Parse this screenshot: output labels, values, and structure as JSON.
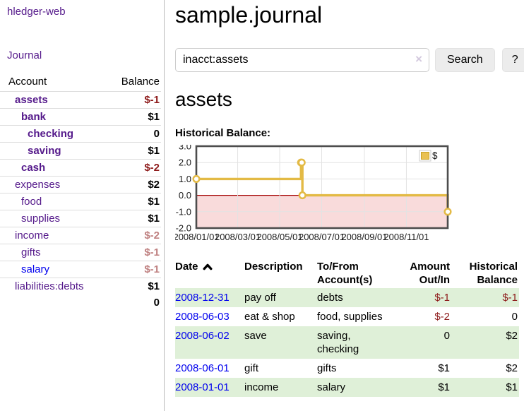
{
  "colors": {
    "link_purple": "#551A8B",
    "link_blue": "#0000EE",
    "neg_strong": "#8d1a1a",
    "neg_soft": "#bf8080",
    "row_green": "#dff0d8",
    "chart_gold": "#e3ba45",
    "chart_negative_bg": "#f9dbdb",
    "chart_zero_line": "#a30000"
  },
  "sidebar": {
    "brand": "hledger-web",
    "journal_link": "Journal",
    "accounts": {
      "col_account": "Account",
      "col_balance": "Balance",
      "rows": [
        {
          "name": "assets",
          "balance": "$-1",
          "indent": 1,
          "in_query": true,
          "negative": true
        },
        {
          "name": "bank",
          "balance": "$1",
          "indent": 2,
          "in_query": true,
          "negative": false
        },
        {
          "name": "checking",
          "balance": "0",
          "indent": 3,
          "in_query": true,
          "negative": false
        },
        {
          "name": "saving",
          "balance": "$1",
          "indent": 3,
          "in_query": true,
          "negative": false
        },
        {
          "name": "cash",
          "balance": "$-2",
          "indent": 2,
          "in_query": true,
          "negative": true
        },
        {
          "name": "expenses",
          "balance": "$2",
          "indent": 1,
          "in_query": false,
          "negative": false
        },
        {
          "name": "food",
          "balance": "$1",
          "indent": 2,
          "in_query": false,
          "negative": false
        },
        {
          "name": "supplies",
          "balance": "$1",
          "indent": 2,
          "in_query": false,
          "negative": false
        },
        {
          "name": "income",
          "balance": "$-2",
          "indent": 1,
          "in_query": false,
          "negative": true
        },
        {
          "name": "gifts",
          "balance": "$-1",
          "indent": 2,
          "in_query": false,
          "negative": true
        },
        {
          "name": "salary",
          "balance": "$-1",
          "indent": 2,
          "in_query": false,
          "negative": true,
          "unvisited": true
        },
        {
          "name": "liabilities:debts",
          "balance": "$1",
          "indent": 1,
          "in_query": false,
          "negative": false
        }
      ],
      "total": "0"
    }
  },
  "main": {
    "title": "sample.journal",
    "search": {
      "query": "inacct:assets",
      "clear_icon": "×",
      "button_label": "Search",
      "help_label": "?"
    },
    "account_heading": "assets"
  },
  "chart_data": {
    "type": "line",
    "title": "Historical Balance:",
    "step": true,
    "legend": [
      {
        "label": "$",
        "color": "#e9c153"
      }
    ],
    "x_unit": "day-of-2008",
    "xlim": [
      0,
      365
    ],
    "ylim": [
      -2,
      3
    ],
    "series": [
      {
        "name": "$",
        "points": [
          {
            "date": "2008-01-01",
            "day": 0,
            "value": 1
          },
          {
            "date": "2008-06-01",
            "day": 152,
            "value": 2
          },
          {
            "date": "2008-06-02",
            "day": 153,
            "value": 2
          },
          {
            "date": "2008-06-03",
            "day": 154,
            "value": 0
          },
          {
            "date": "2008-12-31",
            "day": 365,
            "value": -1
          }
        ]
      }
    ],
    "x_ticks": [
      {
        "day": 0,
        "label": "2008/01/01"
      },
      {
        "day": 60,
        "label": "2008/03/01"
      },
      {
        "day": 121,
        "label": "2008/05/01"
      },
      {
        "day": 182,
        "label": "2008/07/01"
      },
      {
        "day": 244,
        "label": "2008/09/01"
      },
      {
        "day": 305,
        "label": "2008/11/01"
      }
    ],
    "y_ticks": [
      {
        "value": 3,
        "label": "3.0"
      },
      {
        "value": 2,
        "label": "2.0"
      },
      {
        "value": 1,
        "label": "1.0"
      },
      {
        "value": 0,
        "label": "0.0"
      },
      {
        "value": -1,
        "label": "-1.0"
      },
      {
        "value": -2,
        "label": "-2.0"
      }
    ],
    "negative_region": {
      "from": 0,
      "to": -2
    }
  },
  "register": {
    "columns": [
      "Date",
      "Description",
      "To/From Account(s)",
      "Amount Out/In",
      "Historical Balance"
    ],
    "sort_icon": "chevron-up",
    "rows": [
      {
        "date": "2008-12-31",
        "description": "pay off",
        "accounts": "debts",
        "amount": "$-1",
        "balance": "$-1"
      },
      {
        "date": "2008-06-03",
        "description": "eat & shop",
        "accounts": "food, supplies",
        "amount": "$-2",
        "balance": "0"
      },
      {
        "date": "2008-06-02",
        "description": "save",
        "accounts": "saving, checking",
        "amount": "0",
        "balance": "$2"
      },
      {
        "date": "2008-06-01",
        "description": "gift",
        "accounts": "gifts",
        "amount": "$1",
        "balance": "$2"
      },
      {
        "date": "2008-01-01",
        "description": "income",
        "accounts": "salary",
        "amount": "$1",
        "balance": "$1"
      }
    ]
  }
}
